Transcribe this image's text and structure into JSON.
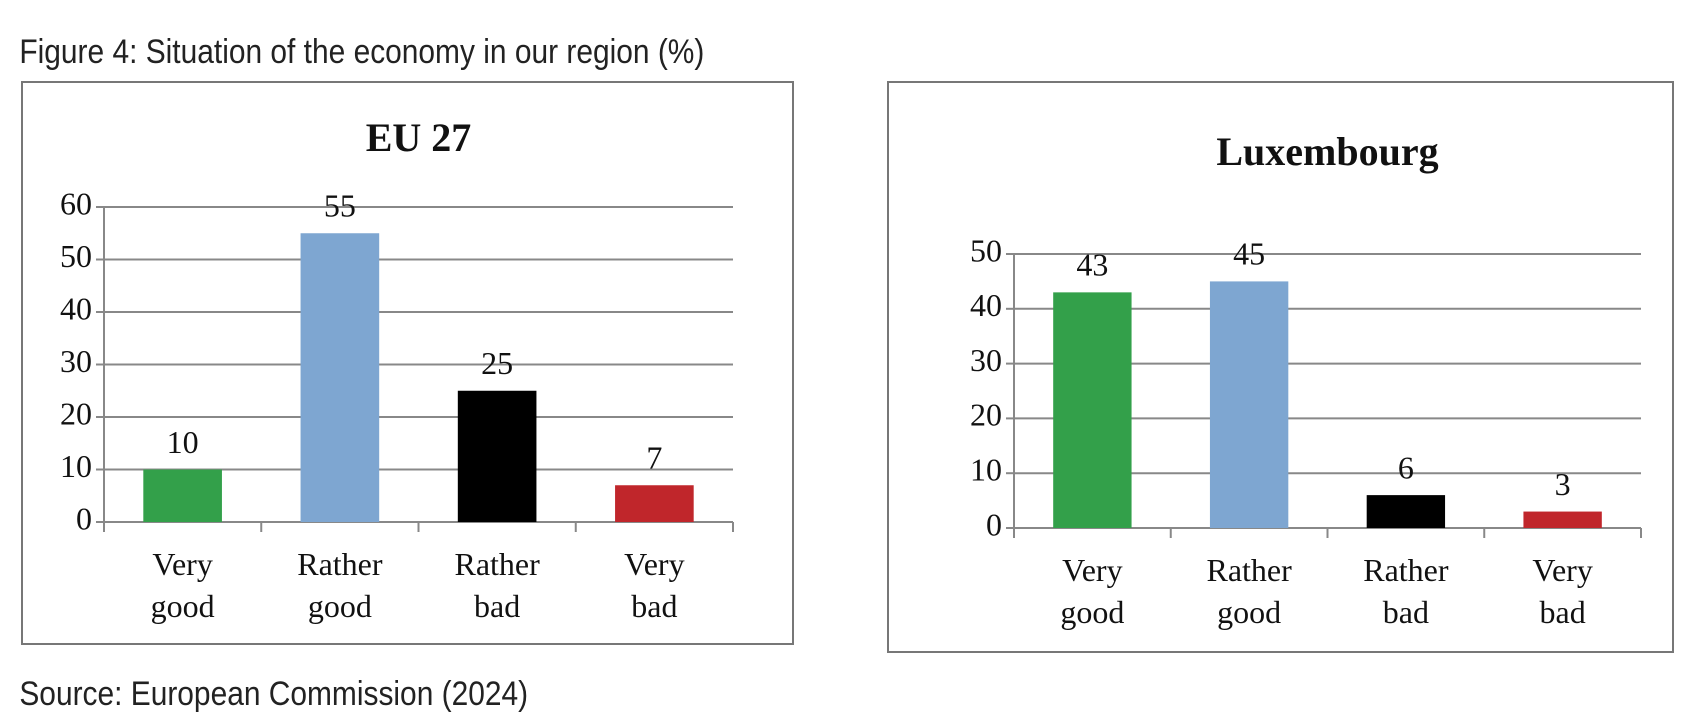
{
  "title": "Figure 4: Situation of the economy in our region (%)",
  "source": "Source: European Commission (2024)",
  "chart_data": [
    {
      "type": "bar",
      "title": "EU 27",
      "categories": [
        "Very good",
        "Rather good",
        "Rather bad",
        "Very bad"
      ],
      "values": [
        10,
        55,
        25,
        7
      ],
      "colors": [
        "#33a04a",
        "#7ea6d1",
        "#000000",
        "#c0262b"
      ],
      "ylim": [
        0,
        60
      ],
      "yticks": [
        0,
        10,
        20,
        30,
        40,
        50,
        60
      ],
      "grid": true
    },
    {
      "type": "bar",
      "title": "Luxembourg",
      "categories": [
        "Very good",
        "Rather good",
        "Rather bad",
        "Very bad"
      ],
      "values": [
        43,
        45,
        6,
        3
      ],
      "colors": [
        "#33a04a",
        "#7ea6d1",
        "#000000",
        "#c0262b"
      ],
      "ylim": [
        0,
        50
      ],
      "yticks": [
        0,
        10,
        20,
        30,
        40,
        50
      ],
      "grid": true
    }
  ]
}
